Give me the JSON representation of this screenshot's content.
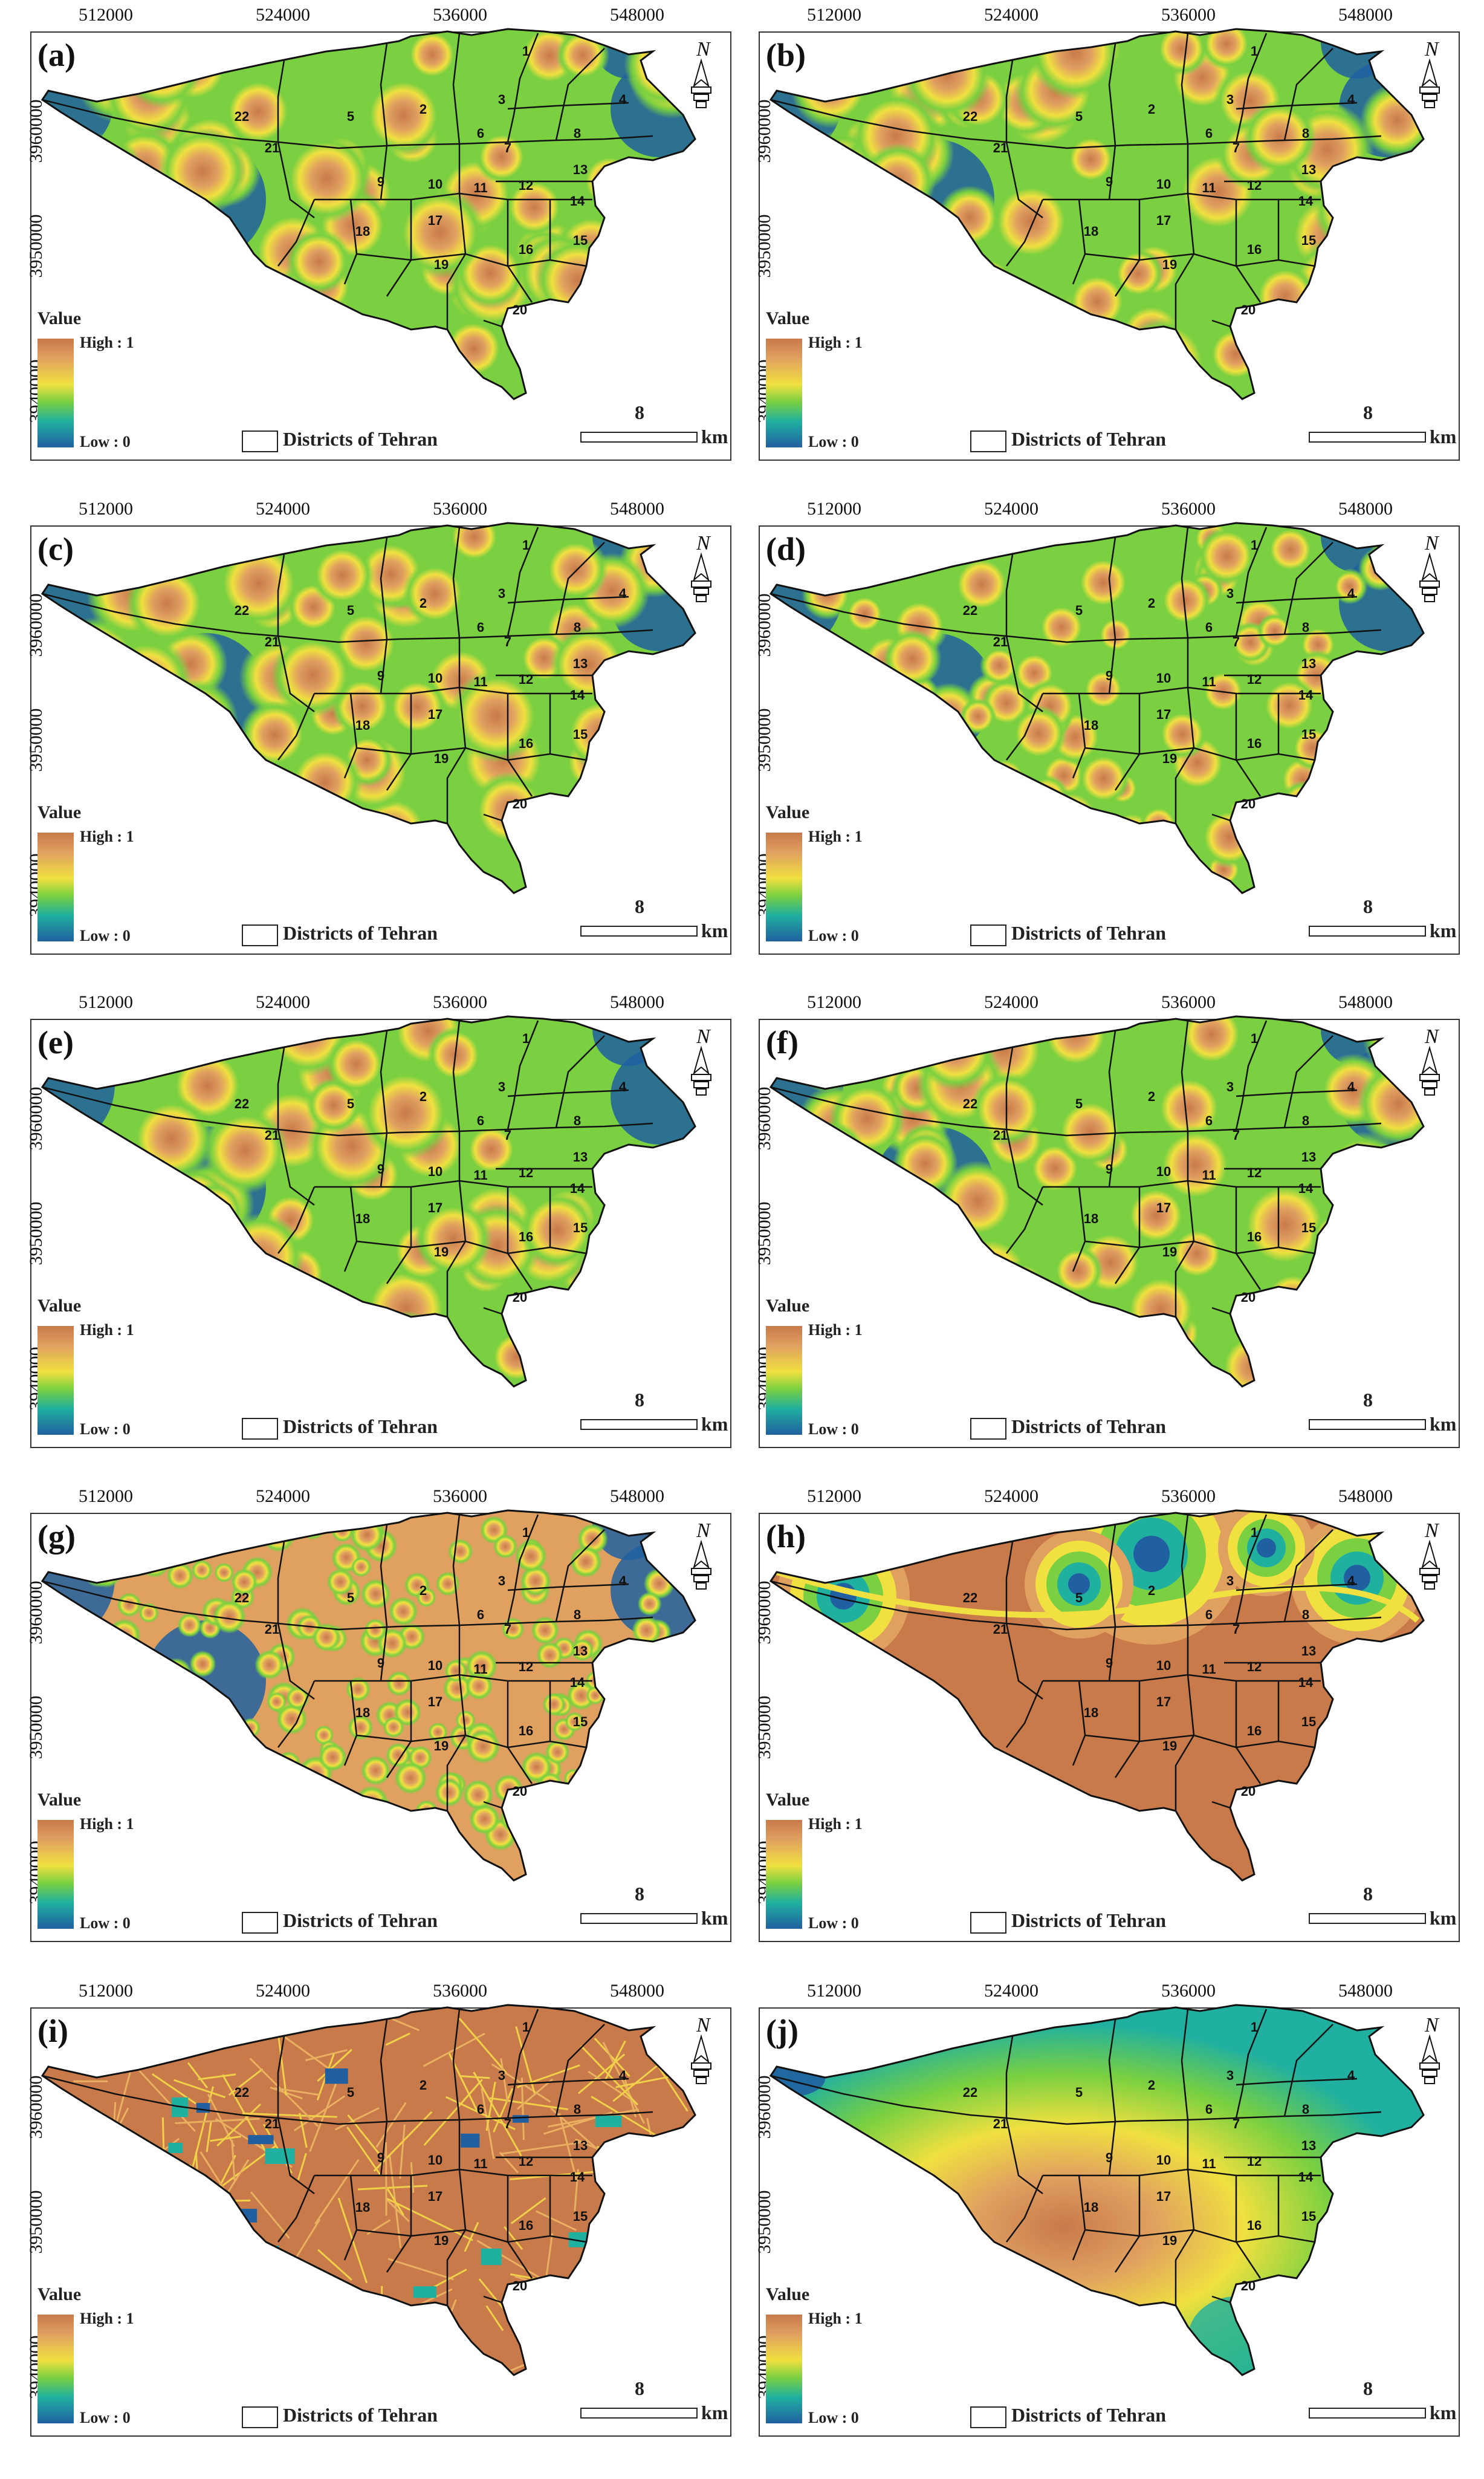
{
  "x_ticks": [
    "512000",
    "524000",
    "536000",
    "548000"
  ],
  "y_ticks": [
    "3960000",
    "3950000",
    "3940000"
  ],
  "legend": {
    "title": "Value",
    "high": "High : 1",
    "low": "Low : 0"
  },
  "districts_label": "Districts of Tehran",
  "scale": {
    "value": "8",
    "unit": "km"
  },
  "north_symbol": "N",
  "district_numbers": [
    "1",
    "2",
    "3",
    "4",
    "5",
    "6",
    "7",
    "8",
    "9",
    "10",
    "11",
    "12",
    "13",
    "14",
    "15",
    "16",
    "17",
    "18",
    "19",
    "20",
    "21",
    "22"
  ],
  "colors": {
    "high": "#c87a4a",
    "mid_high": "#e0a060",
    "mid": "#f0e040",
    "mid_low": "#7ad040",
    "teal": "#20b0a0",
    "low": "#2060a0"
  },
  "panels": [
    {
      "label": "(a)",
      "style": "blobs"
    },
    {
      "label": "(b)",
      "style": "blobs"
    },
    {
      "label": "(c)",
      "style": "blobs"
    },
    {
      "label": "(d)",
      "style": "blobs"
    },
    {
      "label": "(e)",
      "style": "blobs"
    },
    {
      "label": "(f)",
      "style": "blobs"
    },
    {
      "label": "(g)",
      "style": "blobs"
    },
    {
      "label": "(h)",
      "style": "rings"
    },
    {
      "label": "(i)",
      "style": "grid"
    },
    {
      "label": "(j)",
      "style": "smooth"
    }
  ]
}
